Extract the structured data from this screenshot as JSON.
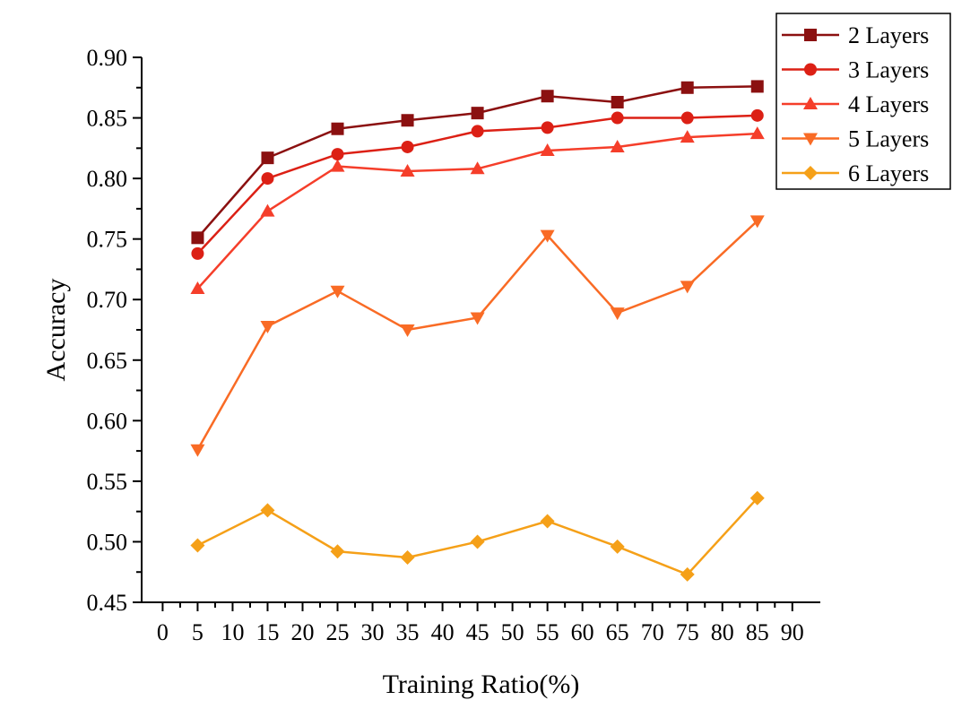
{
  "chart_data": {
    "type": "line",
    "title": "",
    "xlabel": "Training Ratio(%)",
    "ylabel": "Accuracy",
    "xlim": [
      -3,
      94
    ],
    "ylim": [
      0.45,
      0.9
    ],
    "x_ticks": [
      0,
      5,
      10,
      15,
      20,
      25,
      30,
      35,
      40,
      45,
      50,
      55,
      60,
      65,
      70,
      75,
      80,
      85,
      90
    ],
    "x_tick_labels": [
      "0",
      "5",
      "10",
      "15",
      "20",
      "25",
      "30",
      "35",
      "40",
      "45",
      "50",
      "55",
      "60",
      "65",
      "70",
      "75",
      "80",
      "85",
      "90"
    ],
    "y_ticks": [
      0.45,
      0.5,
      0.55,
      0.6,
      0.65,
      0.7,
      0.75,
      0.8,
      0.85,
      0.9
    ],
    "y_tick_labels": [
      "0.45",
      "0.50",
      "0.55",
      "0.60",
      "0.65",
      "0.70",
      "0.75",
      "0.80",
      "0.85",
      "0.90"
    ],
    "grid": false,
    "legend_position": "top-right",
    "x": [
      5,
      15,
      25,
      35,
      45,
      55,
      65,
      75,
      85
    ],
    "series": [
      {
        "name": "2 Layers",
        "marker": "square",
        "color": "#8B1010",
        "values": [
          0.751,
          0.817,
          0.841,
          0.848,
          0.854,
          0.868,
          0.863,
          0.875,
          0.876
        ]
      },
      {
        "name": "3 Layers",
        "marker": "circle",
        "color": "#DC2015",
        "values": [
          0.738,
          0.8,
          0.82,
          0.826,
          0.839,
          0.842,
          0.85,
          0.85,
          0.852
        ]
      },
      {
        "name": "4 Layers",
        "marker": "triangle-up",
        "color": "#F53E2A",
        "values": [
          0.709,
          0.773,
          0.81,
          0.806,
          0.808,
          0.823,
          0.826,
          0.834,
          0.837
        ]
      },
      {
        "name": "5 Layers",
        "marker": "triangle-down",
        "color": "#F96B25",
        "values": [
          0.576,
          0.678,
          0.707,
          0.675,
          0.685,
          0.753,
          0.689,
          0.711,
          0.765
        ]
      },
      {
        "name": "6 Layers",
        "marker": "diamond",
        "color": "#F5A018",
        "values": [
          0.497,
          0.526,
          0.492,
          0.487,
          0.5,
          0.517,
          0.496,
          0.473,
          0.536
        ]
      }
    ]
  }
}
